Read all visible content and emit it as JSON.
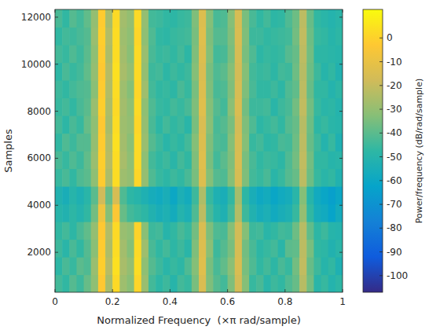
{
  "chart_data": {
    "type": "heatmap",
    "x_label": "Normalized Frequency  (×π rad/sample)",
    "y_label": "Samples",
    "xlim": [
      0,
      1
    ],
    "ylim": [
      300,
      12330
    ],
    "xticks": [
      0,
      0.2,
      0.4,
      0.6,
      0.8,
      1
    ],
    "yticks": [
      2000,
      4000,
      6000,
      8000,
      10000,
      12000
    ],
    "clim": [
      -107,
      12
    ],
    "cticks": [
      0,
      -10,
      -20,
      -30,
      -40,
      -50,
      -60,
      -70,
      -80,
      -90,
      -100
    ],
    "colorbar_label": "Power/frequency (dB/rad/sample)",
    "cells": [
      [
        -44,
        -47,
        -41,
        -45,
        -38,
        -31,
        -3,
        -26,
        2,
        -28,
        -32,
        1,
        -29,
        -44,
        -48,
        -45,
        -50,
        -44,
        -46,
        -35,
        -15,
        -34,
        -41,
        -44,
        -34,
        -17,
        -33,
        -46,
        -43,
        -49,
        -45,
        -47,
        -42,
        -38,
        -23,
        -36,
        -49,
        -46,
        -51,
        -48
      ],
      [
        -48,
        -43,
        -46,
        -40,
        -42,
        -29,
        -1,
        -23,
        4,
        -26,
        -30,
        3,
        -31,
        -41,
        -45,
        -49,
        -46,
        -48,
        -42,
        -33,
        -13,
        -35,
        -43,
        -39,
        -32,
        -15,
        -35,
        -42,
        -47,
        -44,
        -48,
        -43,
        -46,
        -36,
        -21,
        -38,
        -45,
        -50,
        -47,
        -53
      ],
      [
        -45,
        -49,
        -43,
        -47,
        -41,
        -32,
        -2,
        -25,
        3,
        -27,
        -33,
        2,
        -28,
        -43,
        -47,
        -44,
        -48,
        -45,
        -49,
        -34,
        -14,
        -32,
        -45,
        -41,
        -35,
        -16,
        -36,
        -43,
        -48,
        -46,
        -44,
        -49,
        -40,
        -39,
        -22,
        -35,
        -47,
        -48,
        -52,
        -49
      ],
      [
        -47,
        -44,
        -48,
        -43,
        -39,
        -30,
        -3,
        -24,
        2,
        -29,
        -31,
        0,
        -32,
        -45,
        -44,
        -50,
        -47,
        -43,
        -46,
        -36,
        -15,
        -34,
        -42,
        -43,
        -33,
        -17,
        -33,
        -45,
        -44,
        -49,
        -47,
        -44,
        -45,
        -37,
        -23,
        -39,
        -48,
        -45,
        -50,
        -51
      ],
      [
        -50,
        -52,
        -48,
        -51,
        -47,
        -36,
        -8,
        -33,
        -4,
        -38,
        -44,
        -46,
        -48,
        -52,
        -55,
        -53,
        -57,
        -51,
        -54,
        -42,
        -22,
        -43,
        -50,
        -53,
        -44,
        -24,
        -45,
        -52,
        -56,
        -54,
        -58,
        -55,
        -53,
        -46,
        -30,
        -47,
        -56,
        -58,
        -62,
        -57
      ],
      [
        -52,
        -55,
        -50,
        -53,
        -49,
        -40,
        -18,
        -38,
        -16,
        -42,
        -48,
        -50,
        -53,
        -56,
        -58,
        -55,
        -60,
        -54,
        -57,
        -45,
        -25,
        -46,
        -53,
        -55,
        -47,
        -27,
        -48,
        -55,
        -59,
        -57,
        -61,
        -58,
        -56,
        -49,
        -33,
        -50,
        -58,
        -61,
        -64,
        -60
      ],
      [
        -46,
        -43,
        -47,
        -42,
        -40,
        -31,
        -2,
        -25,
        3,
        -28,
        -30,
        1,
        -30,
        -42,
        -46,
        -48,
        -45,
        -47,
        -43,
        -35,
        -14,
        -33,
        -41,
        -42,
        -33,
        -16,
        -34,
        -44,
        -46,
        -43,
        -49,
        -46,
        -41,
        -38,
        -22,
        -37,
        -46,
        -49,
        -47,
        -52
      ],
      [
        -43,
        -46,
        -42,
        -45,
        -39,
        -29,
        -1,
        -23,
        3,
        -26,
        -31,
        2,
        -31,
        -44,
        -47,
        -45,
        -49,
        -44,
        -47,
        -34,
        -13,
        -35,
        -44,
        -40,
        -34,
        -15,
        -35,
        -43,
        -47,
        -45,
        -46,
        -48,
        -42,
        -36,
        -21,
        -36,
        -47,
        -47,
        -50,
        -49
      ],
      [
        -47,
        -42,
        -45,
        -41,
        -41,
        -30,
        -2,
        -24,
        4,
        -27,
        -32,
        2,
        -29,
        -41,
        -45,
        -49,
        -46,
        -48,
        -44,
        -33,
        -14,
        -34,
        -42,
        -43,
        -33,
        -16,
        -33,
        -46,
        -44,
        -48,
        -47,
        -43,
        -44,
        -37,
        -22,
        -38,
        -45,
        -51,
        -46,
        -53
      ],
      [
        -44,
        -48,
        -43,
        -46,
        -38,
        -31,
        -3,
        -26,
        3,
        -28,
        -30,
        1,
        -30,
        -43,
        -48,
        -44,
        -47,
        -45,
        -49,
        -35,
        -15,
        -32,
        -43,
        -41,
        -35,
        -17,
        -34,
        -42,
        -48,
        -46,
        -44,
        -47,
        -41,
        -38,
        -23,
        -37,
        -48,
        -46,
        -49,
        -50
      ],
      [
        -46,
        -44,
        -47,
        -43,
        -40,
        -29,
        -1,
        -25,
        2,
        -27,
        -31,
        2,
        -31,
        -42,
        -46,
        -47,
        -44,
        -46,
        -43,
        -34,
        -13,
        -33,
        -41,
        -44,
        -32,
        -15,
        -36,
        -45,
        -45,
        -44,
        -49,
        -45,
        -43,
        -36,
        -21,
        -36,
        -46,
        -49,
        -48,
        -51
      ],
      [
        -45,
        -47,
        -44,
        -42,
        -41,
        -32,
        -2,
        -24,
        3,
        -28,
        -33,
        1,
        -28,
        -44,
        -47,
        -46,
        -48,
        -43,
        -46,
        -35,
        -14,
        -34,
        -43,
        -42,
        -34,
        -16,
        -34,
        -43,
        -47,
        -47,
        -45,
        -48,
        -42,
        -39,
        -22,
        -38,
        -47,
        -47,
        -51,
        -48
      ],
      [
        -48,
        -43,
        -46,
        -44,
        -39,
        -30,
        -3,
        -23,
        4,
        -26,
        -30,
        2,
        -30,
        -45,
        -44,
        -48,
        -45,
        -47,
        -45,
        -33,
        -15,
        -35,
        -42,
        -40,
        -33,
        -17,
        -33,
        -44,
        -46,
        -45,
        -48,
        -44,
        -45,
        -37,
        -23,
        -37,
        -45,
        -50,
        -47,
        -52
      ],
      [
        -44,
        -46,
        -42,
        -45,
        -40,
        -31,
        -2,
        -25,
        3,
        -27,
        -32,
        2,
        -29,
        -43,
        -46,
        -45,
        -47,
        -44,
        -48,
        -34,
        -14,
        -33,
        -44,
        -43,
        -35,
        -16,
        -35,
        -42,
        -48,
        -46,
        -47,
        -46,
        -41,
        -38,
        -22,
        -36,
        -48,
        -48,
        -49,
        -50
      ],
      [
        -47,
        -44,
        -45,
        -43,
        -41,
        -29,
        -1,
        -24,
        3,
        -28,
        -31,
        1,
        -31,
        -42,
        -47,
        -48,
        -46,
        -45,
        -44,
        -35,
        -13,
        -34,
        -41,
        -41,
        -34,
        -15,
        -34,
        -45,
        -45,
        -47,
        -46,
        -45,
        -44,
        -36,
        -21,
        -37,
        -46,
        -47,
        -50,
        -48
      ],
      [
        -43,
        -47,
        -41,
        -44,
        -39,
        -30,
        -2,
        -26,
        2,
        -27,
        -30,
        2,
        -30,
        -44,
        -45,
        -47,
        -48,
        -46,
        -45,
        -34,
        -14,
        -33,
        -43,
        -42,
        -33,
        -16,
        -35,
        -43,
        -47,
        -44,
        -48,
        -47,
        -42,
        -37,
        -22,
        -38,
        -47,
        -49,
        -51,
        -49
      ]
    ]
  }
}
